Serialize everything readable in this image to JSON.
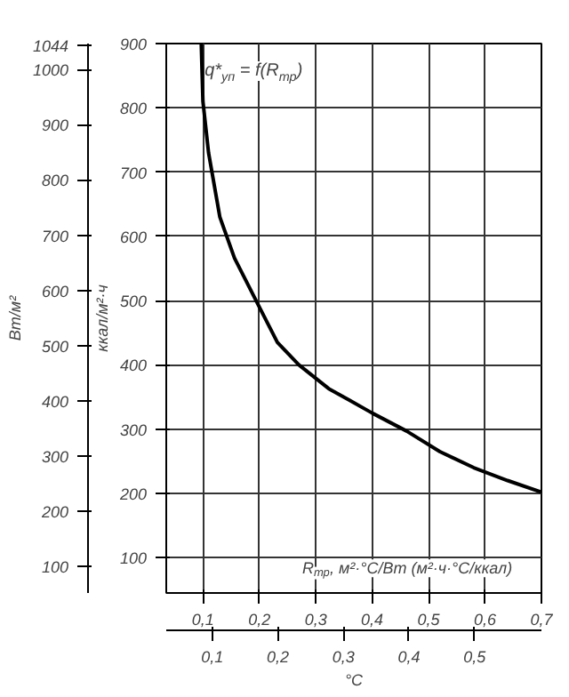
{
  "chart_data": {
    "type": "line",
    "x": [
      0.097,
      0.1,
      0.11,
      0.13,
      0.156,
      0.2,
      0.232,
      0.27,
      0.323,
      0.36,
      0.4,
      0.461,
      0.52,
      0.58,
      0.64,
      0.7
    ],
    "values": [
      900,
      810,
      730,
      630,
      566,
      490,
      435,
      400,
      363,
      345,
      325,
      297,
      265,
      240,
      220,
      202
    ],
    "color": "#000000",
    "xlim": [
      0.035,
      0.7
    ],
    "xticks": [
      {
        "value": 0.1,
        "label": "0,1"
      },
      {
        "value": 0.2,
        "label": "0,2"
      },
      {
        "value": 0.3,
        "label": "0,3"
      },
      {
        "value": 0.4,
        "label": "0,4"
      },
      {
        "value": 0.5,
        "label": "0,5"
      },
      {
        "value": 0.6,
        "label": "0,6"
      },
      {
        "value": 0.7,
        "label": "0,7"
      }
    ],
    "ylim": [
      45,
      900
    ],
    "yticks": [
      100,
      200,
      300,
      400,
      500,
      600,
      700,
      800,
      900
    ],
    "x2lim": [
      0.03,
      0.602
    ],
    "x2ticks": [
      {
        "value": 0.1,
        "label": "0,1"
      },
      {
        "value": 0.2,
        "label": "0,2"
      },
      {
        "value": 0.3,
        "label": "0,3"
      },
      {
        "value": 0.4,
        "label": "0,4"
      },
      {
        "value": 0.5,
        "label": "0,5"
      }
    ],
    "y2lim": [
      52,
      1047
    ],
    "y2ticks": [
      100,
      200,
      300,
      400,
      500,
      600,
      700,
      800,
      900,
      1000,
      1044
    ],
    "xlabel": "R$_{тр}$, м²·°C/Вт (м²·ч·°C/ккал)",
    "x2label": "°C",
    "ylabel": "ккал/м²·ч",
    "y2label": "Вт/м²",
    "annotations": [
      "q*$_{уп}$ = f(R$_{тр}$)"
    ],
    "grid": true,
    "marker": "none",
    "line_style": "solid"
  }
}
